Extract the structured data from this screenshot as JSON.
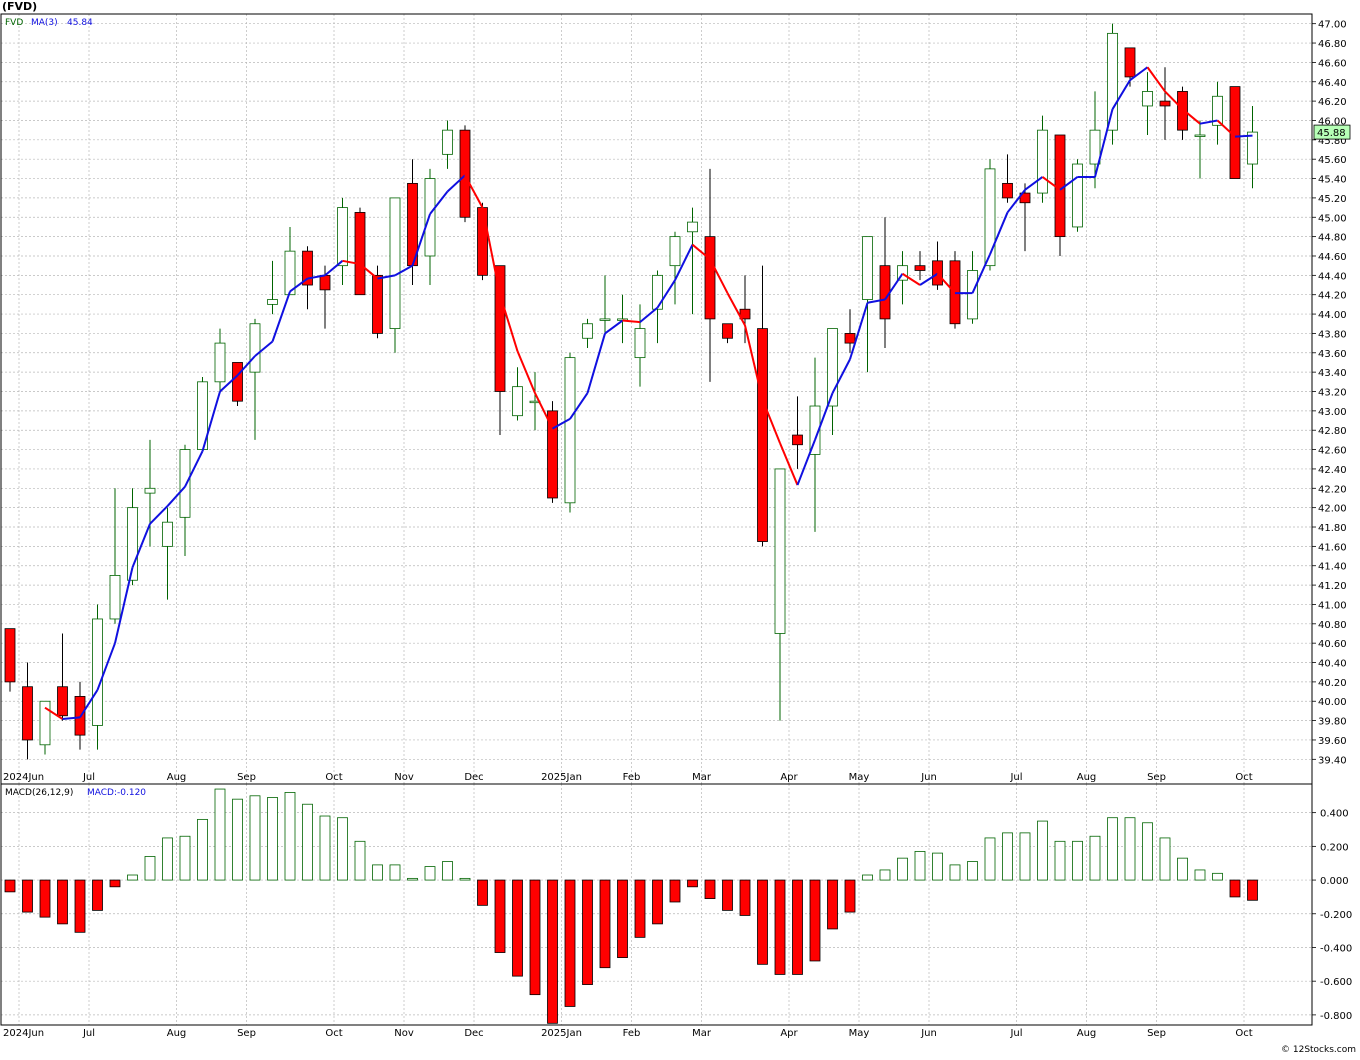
{
  "header": {
    "symbol": "(FVD)",
    "price_label": "FVD",
    "ma_label": "MA(3)",
    "ma_value": "45.84",
    "macd_label": "MACD(26,12,9)",
    "macd_value": "MACD:-0.120",
    "last_price_tag": "45.88",
    "watermark": "© 12Stocks.com"
  },
  "colors": {
    "up": "#006400",
    "down": "#ff0000",
    "ma_up": "#1010e0",
    "ma_down": "#ff0000",
    "grid": "#b8b8b8",
    "tag_bg": "#b6ffb6"
  },
  "chart_data": [
    {
      "type": "candlestick",
      "title": "(FVD)",
      "interval": "weekly",
      "ylim": [
        39.3,
        47.1
      ],
      "yticks": [
        39.4,
        39.6,
        39.8,
        40.0,
        40.2,
        40.4,
        40.6,
        40.8,
        41.0,
        41.2,
        41.4,
        41.6,
        41.8,
        42.0,
        42.2,
        42.4,
        42.6,
        42.8,
        43.0,
        43.2,
        43.4,
        43.6,
        43.8,
        44.0,
        44.2,
        44.4,
        44.6,
        44.8,
        45.0,
        45.2,
        45.4,
        45.6,
        45.8,
        46.0,
        46.2,
        46.4,
        46.6,
        46.8,
        47.0
      ],
      "x_labels": [
        {
          "label": "2024Jun",
          "bar": 0
        },
        {
          "label": "Jul",
          "bar": 4
        },
        {
          "label": "Aug",
          "bar": 9
        },
        {
          "label": "Sep",
          "bar": 13
        },
        {
          "label": "Oct",
          "bar": 18
        },
        {
          "label": "Nov",
          "bar": 22
        },
        {
          "label": "Dec",
          "bar": 26
        },
        {
          "label": "2025Jan",
          "bar": 31
        },
        {
          "label": "Feb",
          "bar": 35
        },
        {
          "label": "Mar",
          "bar": 39
        },
        {
          "label": "Apr",
          "bar": 44
        },
        {
          "label": "May",
          "bar": 48
        },
        {
          "label": "Jun",
          "bar": 52
        },
        {
          "label": "Jul",
          "bar": 57
        },
        {
          "label": "Aug",
          "bar": 61
        },
        {
          "label": "Sep",
          "bar": 65
        },
        {
          "label": "Oct",
          "bar": 70
        }
      ],
      "candles": [
        {
          "o": 40.75,
          "h": 40.75,
          "l": 40.1,
          "c": 40.2
        },
        {
          "o": 40.15,
          "h": 40.4,
          "l": 39.4,
          "c": 39.6
        },
        {
          "o": 39.55,
          "h": 40.0,
          "l": 39.45,
          "c": 40.0
        },
        {
          "o": 40.15,
          "h": 40.7,
          "l": 39.8,
          "c": 39.85
        },
        {
          "o": 40.05,
          "h": 40.2,
          "l": 39.5,
          "c": 39.65
        },
        {
          "o": 39.75,
          "h": 41.0,
          "l": 39.5,
          "c": 40.85
        },
        {
          "o": 40.85,
          "h": 42.2,
          "l": 40.8,
          "c": 41.3
        },
        {
          "o": 41.25,
          "h": 42.2,
          "l": 41.2,
          "c": 42.0
        },
        {
          "o": 42.15,
          "h": 42.7,
          "l": 41.6,
          "c": 42.2
        },
        {
          "o": 41.6,
          "h": 42.0,
          "l": 41.05,
          "c": 41.85
        },
        {
          "o": 41.9,
          "h": 42.65,
          "l": 41.5,
          "c": 42.6
        },
        {
          "o": 42.6,
          "h": 43.35,
          "l": 42.6,
          "c": 43.3
        },
        {
          "o": 43.3,
          "h": 43.85,
          "l": 43.2,
          "c": 43.7
        },
        {
          "o": 43.5,
          "h": 43.5,
          "l": 43.05,
          "c": 43.1
        },
        {
          "o": 43.4,
          "h": 43.95,
          "l": 42.7,
          "c": 43.9
        },
        {
          "o": 44.1,
          "h": 44.55,
          "l": 44.0,
          "c": 44.15
        },
        {
          "o": 44.2,
          "h": 44.9,
          "l": 44.2,
          "c": 44.65
        },
        {
          "o": 44.65,
          "h": 44.7,
          "l": 44.05,
          "c": 44.3
        },
        {
          "o": 44.4,
          "h": 44.5,
          "l": 43.85,
          "c": 44.25
        },
        {
          "o": 44.5,
          "h": 45.2,
          "l": 44.3,
          "c": 45.1
        },
        {
          "o": 45.05,
          "h": 45.1,
          "l": 44.2,
          "c": 44.2
        },
        {
          "o": 44.4,
          "h": 44.5,
          "l": 43.75,
          "c": 43.8
        },
        {
          "o": 43.85,
          "h": 45.2,
          "l": 43.6,
          "c": 45.2
        },
        {
          "o": 45.35,
          "h": 45.6,
          "l": 44.3,
          "c": 44.5
        },
        {
          "o": 44.6,
          "h": 45.5,
          "l": 44.3,
          "c": 45.4
        },
        {
          "o": 45.65,
          "h": 46.0,
          "l": 45.5,
          "c": 45.9
        },
        {
          "o": 45.9,
          "h": 45.95,
          "l": 44.95,
          "c": 45.0
        },
        {
          "o": 45.1,
          "h": 45.15,
          "l": 44.35,
          "c": 44.4
        },
        {
          "o": 44.5,
          "h": 44.5,
          "l": 42.75,
          "c": 43.2
        },
        {
          "o": 42.95,
          "h": 43.45,
          "l": 42.9,
          "c": 43.25
        },
        {
          "o": 43.1,
          "h": 43.4,
          "l": 42.8,
          "c": 43.1
        },
        {
          "o": 43.0,
          "h": 43.1,
          "l": 42.05,
          "c": 42.1
        },
        {
          "o": 42.05,
          "h": 43.6,
          "l": 41.95,
          "c": 43.55
        },
        {
          "o": 43.75,
          "h": 43.95,
          "l": 43.65,
          "c": 43.9
        },
        {
          "o": 43.95,
          "h": 44.4,
          "l": 43.8,
          "c": 43.95
        },
        {
          "o": 43.95,
          "h": 44.2,
          "l": 43.7,
          "c": 43.95
        },
        {
          "o": 43.55,
          "h": 44.1,
          "l": 43.25,
          "c": 43.85
        },
        {
          "o": 44.05,
          "h": 44.45,
          "l": 43.7,
          "c": 44.4
        },
        {
          "o": 44.5,
          "h": 44.85,
          "l": 44.1,
          "c": 44.8
        },
        {
          "o": 44.85,
          "h": 45.1,
          "l": 44.0,
          "c": 44.95
        },
        {
          "o": 44.8,
          "h": 45.5,
          "l": 43.3,
          "c": 43.95
        },
        {
          "o": 43.9,
          "h": 43.9,
          "l": 43.7,
          "c": 43.75
        },
        {
          "o": 44.05,
          "h": 44.4,
          "l": 43.7,
          "c": 43.95
        },
        {
          "o": 43.85,
          "h": 44.5,
          "l": 41.6,
          "c": 41.65
        },
        {
          "o": 40.7,
          "h": 42.4,
          "l": 39.8,
          "c": 42.4
        },
        {
          "o": 42.75,
          "h": 43.15,
          "l": 42.4,
          "c": 42.65
        },
        {
          "o": 42.55,
          "h": 43.55,
          "l": 41.75,
          "c": 43.05
        },
        {
          "o": 43.05,
          "h": 43.85,
          "l": 42.75,
          "c": 43.85
        },
        {
          "o": 43.8,
          "h": 44.05,
          "l": 43.6,
          "c": 43.7
        },
        {
          "o": 44.15,
          "h": 44.8,
          "l": 43.4,
          "c": 44.8
        },
        {
          "o": 44.5,
          "h": 45.0,
          "l": 43.65,
          "c": 43.95
        },
        {
          "o": 44.35,
          "h": 44.65,
          "l": 44.1,
          "c": 44.5
        },
        {
          "o": 44.5,
          "h": 44.65,
          "l": 44.35,
          "c": 44.45
        },
        {
          "o": 44.55,
          "h": 44.75,
          "l": 44.25,
          "c": 44.3
        },
        {
          "o": 44.55,
          "h": 44.65,
          "l": 43.85,
          "c": 43.9
        },
        {
          "o": 43.95,
          "h": 44.65,
          "l": 43.9,
          "c": 44.45
        },
        {
          "o": 44.5,
          "h": 45.6,
          "l": 44.45,
          "c": 45.5
        },
        {
          "o": 45.35,
          "h": 45.65,
          "l": 45.15,
          "c": 45.2
        },
        {
          "o": 45.25,
          "h": 45.35,
          "l": 44.65,
          "c": 45.15
        },
        {
          "o": 45.25,
          "h": 46.05,
          "l": 45.15,
          "c": 45.9
        },
        {
          "o": 45.85,
          "h": 45.85,
          "l": 44.6,
          "c": 44.8
        },
        {
          "o": 44.9,
          "h": 45.6,
          "l": 44.85,
          "c": 45.55
        },
        {
          "o": 45.55,
          "h": 46.3,
          "l": 45.3,
          "c": 45.9
        },
        {
          "o": 45.9,
          "h": 47.0,
          "l": 45.75,
          "c": 46.9
        },
        {
          "o": 46.75,
          "h": 46.75,
          "l": 46.35,
          "c": 46.45
        },
        {
          "o": 46.15,
          "h": 46.5,
          "l": 45.85,
          "c": 46.3
        },
        {
          "o": 46.2,
          "h": 46.55,
          "l": 45.8,
          "c": 46.15
        },
        {
          "o": 46.3,
          "h": 46.35,
          "l": 45.8,
          "c": 45.9
        },
        {
          "o": 45.85,
          "h": 46.0,
          "l": 45.4,
          "c": 45.85
        },
        {
          "o": 45.95,
          "h": 46.4,
          "l": 45.75,
          "c": 46.25
        },
        {
          "o": 46.35,
          "h": 46.35,
          "l": 45.4,
          "c": 45.4
        },
        {
          "o": 45.55,
          "h": 46.15,
          "l": 45.3,
          "c": 45.88
        }
      ]
    },
    {
      "type": "bar",
      "title": "MACD(26,12,9)",
      "ylim": [
        -0.86,
        0.57
      ],
      "yticks": [
        -0.8,
        -0.6,
        -0.4,
        -0.2,
        0.0,
        0.2,
        0.4
      ],
      "x_labels": [
        {
          "label": "2024Jun",
          "bar": 0
        },
        {
          "label": "Jul",
          "bar": 4
        },
        {
          "label": "Aug",
          "bar": 9
        },
        {
          "label": "Sep",
          "bar": 13
        },
        {
          "label": "Oct",
          "bar": 18
        },
        {
          "label": "Nov",
          "bar": 22
        },
        {
          "label": "Dec",
          "bar": 26
        },
        {
          "label": "2025Jan",
          "bar": 31
        },
        {
          "label": "Feb",
          "bar": 35
        },
        {
          "label": "Mar",
          "bar": 39
        },
        {
          "label": "Apr",
          "bar": 44
        },
        {
          "label": "May",
          "bar": 48
        },
        {
          "label": "Jun",
          "bar": 52
        },
        {
          "label": "Jul",
          "bar": 57
        },
        {
          "label": "Aug",
          "bar": 61
        },
        {
          "label": "Sep",
          "bar": 65
        },
        {
          "label": "Oct",
          "bar": 70
        }
      ],
      "values": [
        -0.07,
        -0.19,
        -0.22,
        -0.26,
        -0.31,
        -0.18,
        -0.04,
        0.03,
        0.14,
        0.25,
        0.26,
        0.36,
        0.54,
        0.48,
        0.5,
        0.49,
        0.52,
        0.45,
        0.38,
        0.37,
        0.23,
        0.09,
        0.09,
        0.01,
        0.08,
        0.11,
        0.01,
        -0.15,
        -0.43,
        -0.57,
        -0.68,
        -0.85,
        -0.75,
        -0.62,
        -0.52,
        -0.46,
        -0.34,
        -0.26,
        -0.13,
        -0.04,
        -0.11,
        -0.18,
        -0.21,
        -0.5,
        -0.56,
        -0.56,
        -0.48,
        -0.29,
        -0.19,
        0.03,
        0.06,
        0.13,
        0.17,
        0.16,
        0.09,
        0.11,
        0.25,
        0.28,
        0.28,
        0.35,
        0.23,
        0.23,
        0.26,
        0.37,
        0.37,
        0.34,
        0.25,
        0.13,
        0.06,
        0.04,
        -0.1,
        -0.12
      ]
    }
  ]
}
